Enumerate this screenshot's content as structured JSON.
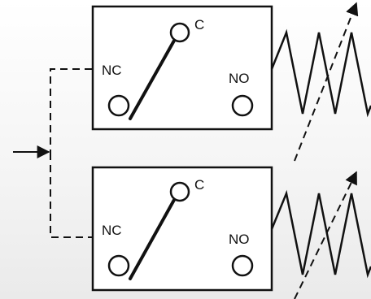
{
  "diagram": {
    "colors": {
      "stroke": "#111111",
      "background_top": "#ffffff",
      "background_bottom": "#eaeaea"
    },
    "switches": [
      {
        "name": "upper",
        "labels": {
          "common": "C",
          "normally_closed": "NC",
          "normally_open": "NO"
        }
      },
      {
        "name": "lower",
        "labels": {
          "common": "C",
          "normally_closed": "NC",
          "normally_open": "NO"
        }
      }
    ]
  }
}
